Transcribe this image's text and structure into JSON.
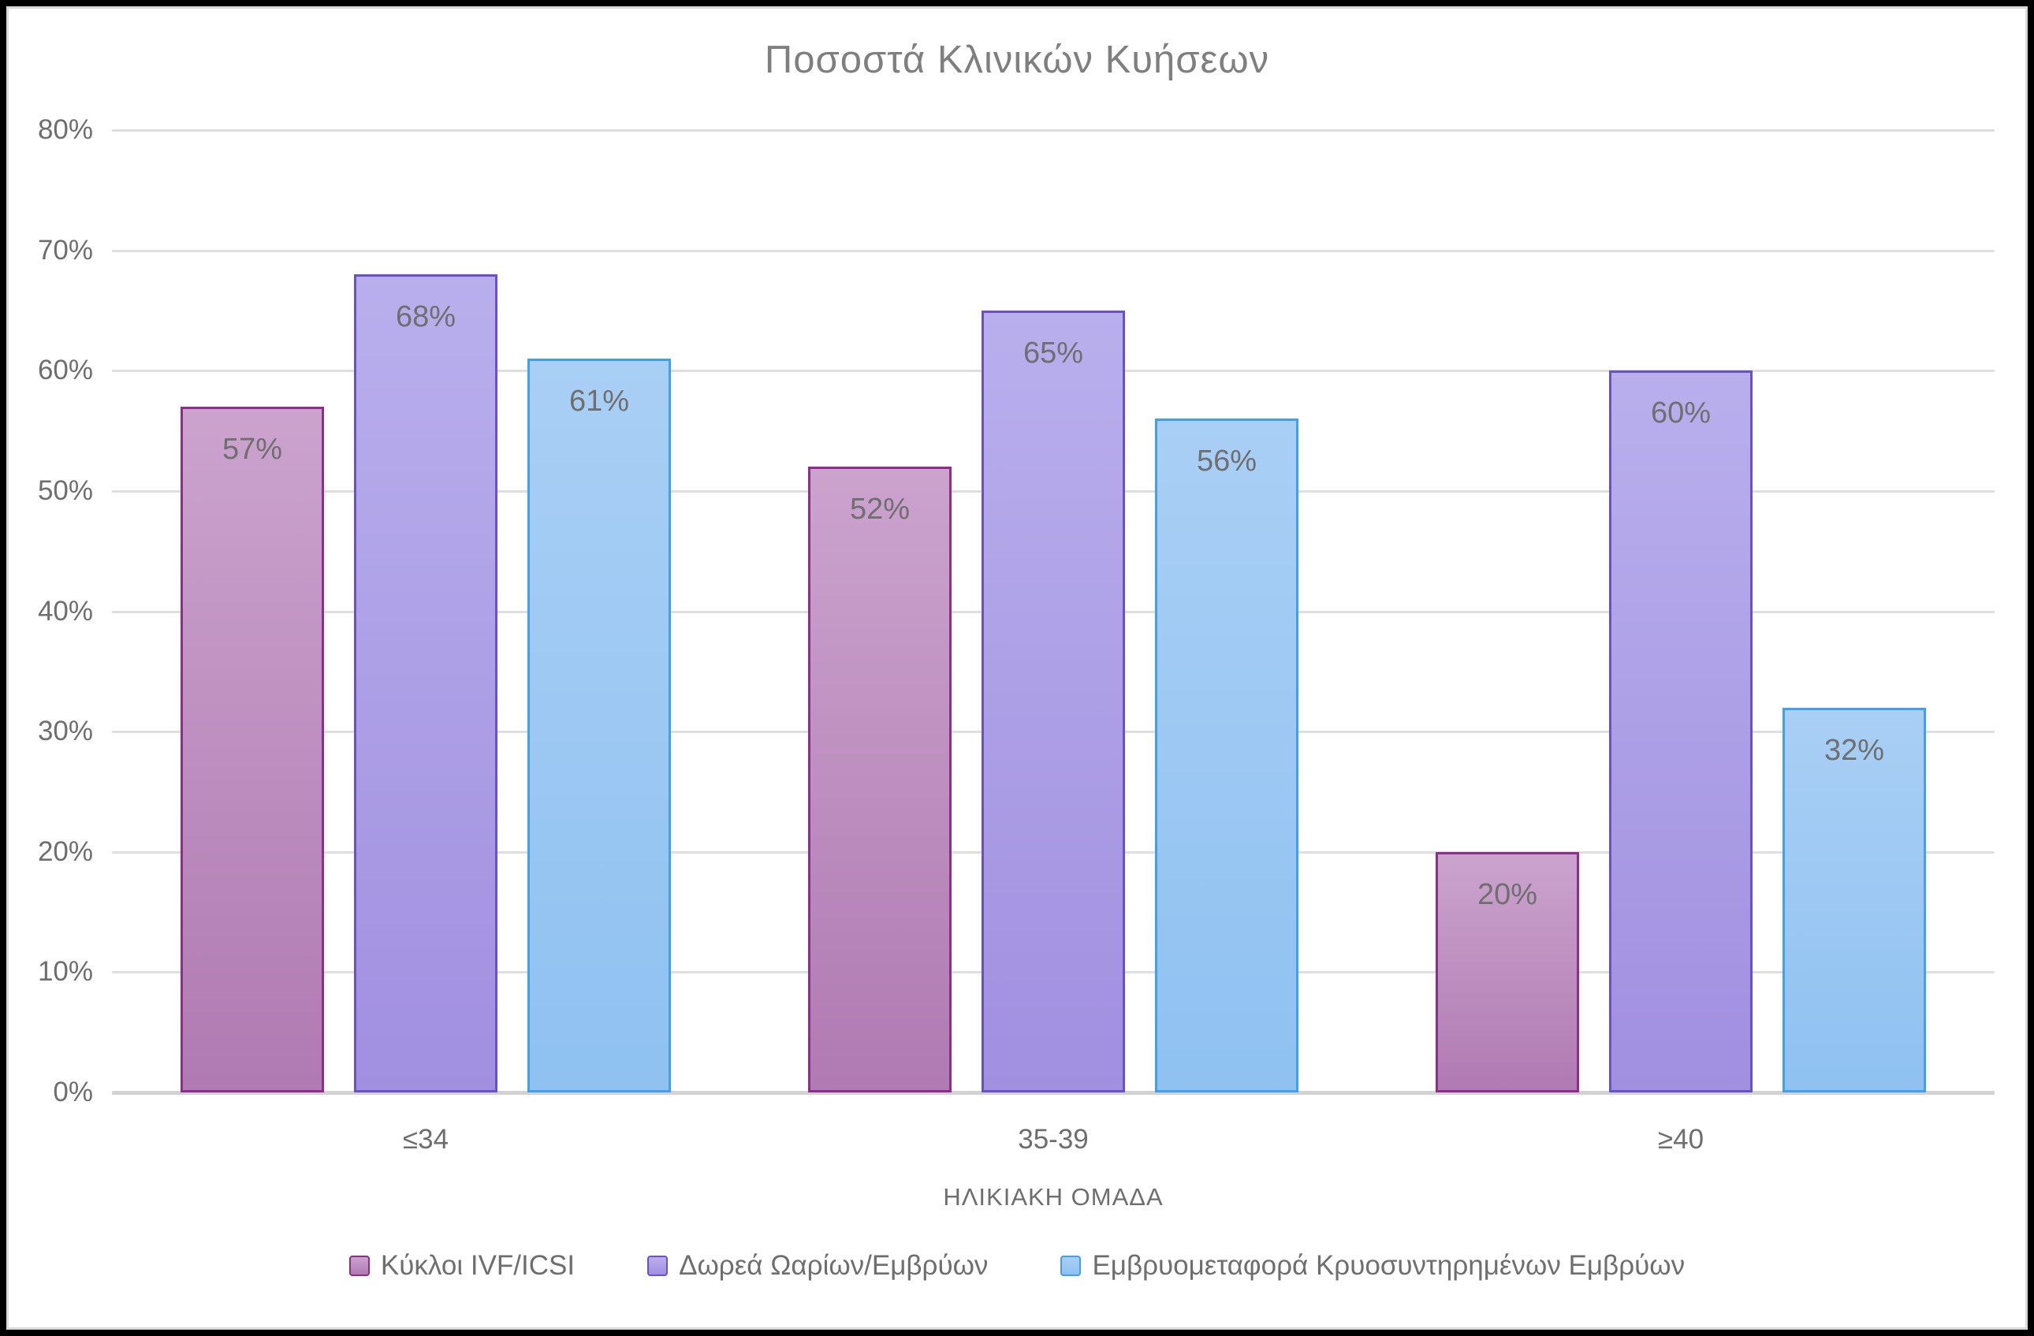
{
  "chart_data": {
    "type": "bar",
    "title": "Ποσοστά Κλινικών Κυήσεων",
    "xlabel": "ΗΛΙΚΙΑΚΗ ΟΜΑΔΑ",
    "ylabel": "",
    "categories": [
      "≤34",
      "35-39",
      "≥40"
    ],
    "series": [
      {
        "name": "Κύκλοι IVF/ICSI",
        "values": [
          57,
          52,
          20
        ],
        "data_labels": [
          "57%",
          "52%",
          "20%"
        ],
        "fill_top": "#cba3cd",
        "fill_bottom": "#b07ab2",
        "border": "#8e2d8e"
      },
      {
        "name": "Δωρεά Ωαρίων/Εμβρύων",
        "values": [
          68,
          65,
          60
        ],
        "data_labels": [
          "68%",
          "65%",
          "60%"
        ],
        "fill_top": "#b9afed",
        "fill_bottom": "#a18fe0",
        "border": "#6b51c8"
      },
      {
        "name": "Εμβρυομεταφορά Κρυοσυντηρημένων Εμβρύων",
        "values": [
          61,
          56,
          32
        ],
        "data_labels": [
          "61%",
          "56%",
          "32%"
        ],
        "fill_top": "#a9cff5",
        "fill_bottom": "#8fc1f1",
        "border": "#41a0ec"
      }
    ],
    "ylim": [
      0,
      80
    ],
    "ytick_step": 10,
    "ytick_labels": [
      "0%",
      "10%",
      "20%",
      "30%",
      "40%",
      "50%",
      "60%",
      "70%",
      "80%"
    ],
    "grid": true,
    "legend_position": "bottom"
  },
  "colors": {
    "title_text": "#7f7f7f",
    "axis_text": "#6e6e6e",
    "data_label_text": "#6f6f6f",
    "gridline": "#dedede",
    "baseline": "#d2d2d2",
    "frame_border": "#000000",
    "background": "#ffffff"
  }
}
